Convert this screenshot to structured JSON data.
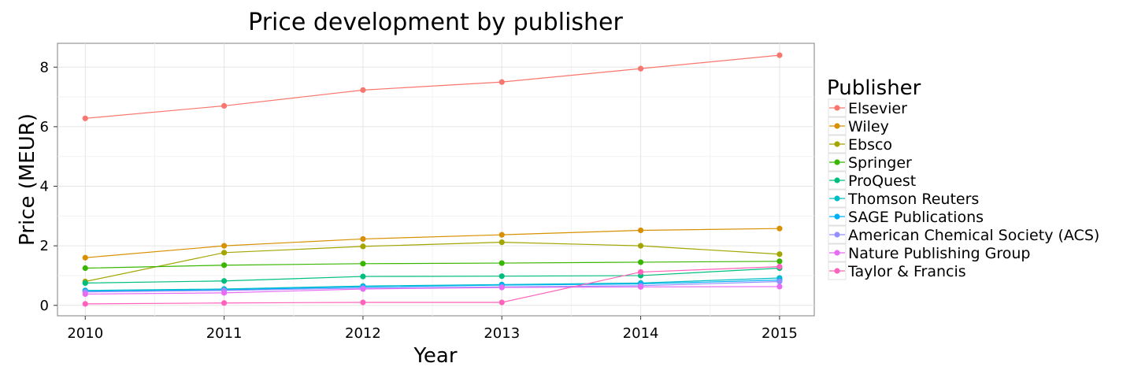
{
  "chart_data": {
    "type": "line",
    "title": "Price development by publisher",
    "xlabel": "Year",
    "ylabel": "Price (MEUR)",
    "x": [
      2010,
      2011,
      2012,
      2013,
      2014,
      2015
    ],
    "x_tick_labels": [
      "2010",
      "2011",
      "2012",
      "2013",
      "2014",
      "2015"
    ],
    "y_ticks": [
      0,
      2,
      4,
      6,
      8
    ],
    "y_tick_labels": [
      "0",
      "2",
      "4",
      "6",
      "8"
    ],
    "xlim": [
      2009.8,
      2015.25
    ],
    "ylim": [
      -0.35,
      8.8
    ],
    "grid": true,
    "legend": {
      "title": "Publisher",
      "placement": "right"
    },
    "series": [
      {
        "name": "Elsevier",
        "color": "#F8766D",
        "values": [
          6.28,
          6.7,
          7.23,
          7.5,
          7.95,
          8.4
        ]
      },
      {
        "name": "Wiley",
        "color": "#D89000",
        "values": [
          1.6,
          2.0,
          2.23,
          2.37,
          2.52,
          2.58
        ]
      },
      {
        "name": "Ebsco",
        "color": "#A3A500",
        "values": [
          0.8,
          1.77,
          1.98,
          2.12,
          2.0,
          1.72
        ]
      },
      {
        "name": "Springer",
        "color": "#39B600",
        "values": [
          1.25,
          1.35,
          1.4,
          1.42,
          1.45,
          1.48
        ]
      },
      {
        "name": "ProQuest",
        "color": "#00BF7D",
        "values": [
          0.75,
          0.82,
          0.97,
          0.98,
          1.0,
          1.25
        ]
      },
      {
        "name": "Thomson Reuters",
        "color": "#00BFC4",
        "values": [
          0.5,
          0.55,
          0.65,
          0.7,
          0.75,
          0.92
        ]
      },
      {
        "name": "SAGE Publications",
        "color": "#00B0F6",
        "values": [
          0.48,
          0.52,
          0.62,
          0.68,
          0.72,
          0.85
        ]
      },
      {
        "name": "American Chemical Society (ACS)",
        "color": "#9590FF",
        "values": [
          0.45,
          0.5,
          0.58,
          0.62,
          0.66,
          0.8
        ]
      },
      {
        "name": "Nature Publishing Group",
        "color": "#E76BF3",
        "values": [
          0.38,
          0.42,
          0.55,
          0.6,
          0.62,
          0.63
        ]
      },
      {
        "name": "Taylor & Francis",
        "color": "#FF62BC",
        "values": [
          0.05,
          0.08,
          0.1,
          0.1,
          1.12,
          1.3
        ]
      }
    ]
  }
}
